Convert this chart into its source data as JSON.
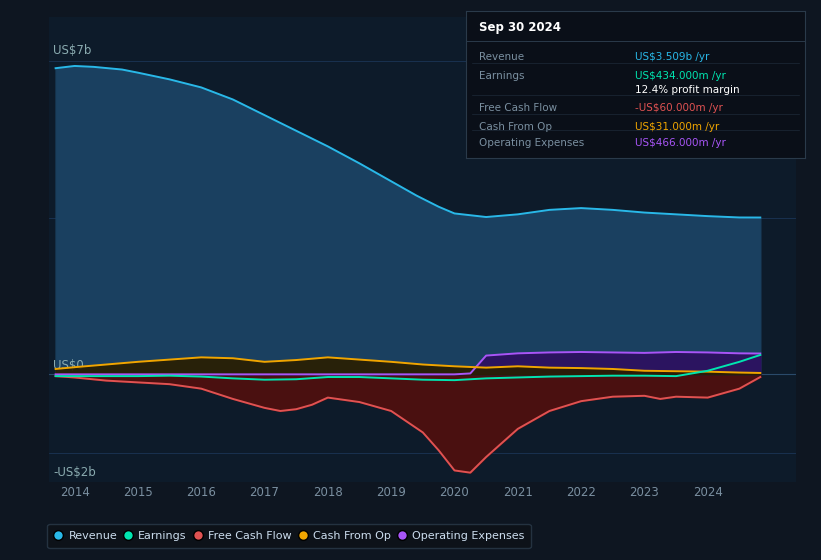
{
  "bg_color": "#0e1621",
  "plot_bg_color": "#0d1b2a",
  "grid_color": "#1e3a5f",
  "ylim": [
    -2.4,
    8.0
  ],
  "xlim": [
    2013.6,
    2025.4
  ],
  "xticks": [
    2014,
    2015,
    2016,
    2017,
    2018,
    2019,
    2020,
    2021,
    2022,
    2023,
    2024
  ],
  "ylabel_top": "US$7b",
  "ylabel_zero": "US$0",
  "ylabel_bot": "-US$2b",
  "y_top_val": 7.0,
  "y_zero_val": 0.0,
  "y_bot_val": -2.0,
  "series": {
    "revenue": {
      "color": "#29b8e8",
      "fill_color": "#1a4060",
      "x": [
        2013.7,
        2014.0,
        2014.3,
        2014.75,
        2015.0,
        2015.5,
        2016.0,
        2016.5,
        2017.0,
        2017.5,
        2018.0,
        2018.5,
        2019.0,
        2019.4,
        2019.75,
        2020.0,
        2020.5,
        2021.0,
        2021.5,
        2022.0,
        2022.5,
        2023.0,
        2023.5,
        2024.0,
        2024.5,
        2024.83
      ],
      "y": [
        6.85,
        6.9,
        6.88,
        6.82,
        6.75,
        6.6,
        6.42,
        6.15,
        5.8,
        5.45,
        5.1,
        4.72,
        4.32,
        4.0,
        3.75,
        3.6,
        3.52,
        3.58,
        3.68,
        3.72,
        3.68,
        3.62,
        3.58,
        3.54,
        3.51,
        3.509
      ]
    },
    "earnings": {
      "color": "#00e5b0",
      "x": [
        2013.7,
        2014.0,
        2014.5,
        2015.0,
        2015.5,
        2016.0,
        2016.5,
        2017.0,
        2017.5,
        2018.0,
        2018.5,
        2019.0,
        2019.5,
        2020.0,
        2020.5,
        2021.0,
        2021.5,
        2022.0,
        2022.5,
        2023.0,
        2023.5,
        2024.0,
        2024.5,
        2024.83
      ],
      "y": [
        -0.04,
        -0.04,
        -0.04,
        -0.04,
        -0.03,
        -0.05,
        -0.09,
        -0.12,
        -0.11,
        -0.06,
        -0.06,
        -0.09,
        -0.12,
        -0.13,
        -0.09,
        -0.07,
        -0.05,
        -0.04,
        -0.03,
        -0.03,
        -0.04,
        0.08,
        0.28,
        0.434
      ]
    },
    "free_cash_flow": {
      "color": "#e05252",
      "fill_color": "#4a1010",
      "x": [
        2013.7,
        2014.0,
        2014.5,
        2015.0,
        2015.5,
        2016.0,
        2016.5,
        2017.0,
        2017.25,
        2017.5,
        2017.75,
        2018.0,
        2018.5,
        2019.0,
        2019.5,
        2019.75,
        2020.0,
        2020.25,
        2020.5,
        2021.0,
        2021.5,
        2022.0,
        2022.5,
        2023.0,
        2023.25,
        2023.5,
        2024.0,
        2024.5,
        2024.83
      ],
      "y": [
        -0.04,
        -0.07,
        -0.14,
        -0.18,
        -0.22,
        -0.32,
        -0.55,
        -0.75,
        -0.82,
        -0.78,
        -0.68,
        -0.52,
        -0.62,
        -0.82,
        -1.3,
        -1.7,
        -2.15,
        -2.2,
        -1.85,
        -1.22,
        -0.82,
        -0.6,
        -0.5,
        -0.48,
        -0.55,
        -0.5,
        -0.52,
        -0.32,
        -0.06
      ]
    },
    "cash_from_op": {
      "color": "#f0a500",
      "fill_color": "#2a1e00",
      "x": [
        2013.7,
        2014.0,
        2014.5,
        2015.0,
        2015.5,
        2016.0,
        2016.5,
        2017.0,
        2017.5,
        2018.0,
        2018.5,
        2019.0,
        2019.5,
        2020.0,
        2020.5,
        2021.0,
        2021.5,
        2022.0,
        2022.5,
        2023.0,
        2023.5,
        2024.0,
        2024.5,
        2024.83
      ],
      "y": [
        0.12,
        0.16,
        0.22,
        0.28,
        0.33,
        0.38,
        0.36,
        0.28,
        0.32,
        0.38,
        0.33,
        0.28,
        0.22,
        0.18,
        0.15,
        0.18,
        0.15,
        0.14,
        0.12,
        0.08,
        0.07,
        0.06,
        0.04,
        0.031
      ]
    },
    "operating_expenses": {
      "color": "#a855f7",
      "fill_color": "#2d1060",
      "x": [
        2013.7,
        2014.0,
        2014.5,
        2015.0,
        2015.5,
        2016.0,
        2016.5,
        2017.0,
        2017.5,
        2018.0,
        2018.5,
        2019.0,
        2019.5,
        2020.0,
        2020.25,
        2020.5,
        2021.0,
        2021.5,
        2022.0,
        2022.5,
        2023.0,
        2023.5,
        2024.0,
        2024.5,
        2024.83
      ],
      "y": [
        0.0,
        0.0,
        0.0,
        0.0,
        0.0,
        0.0,
        0.0,
        0.0,
        0.0,
        0.0,
        0.0,
        0.0,
        0.0,
        0.0,
        0.02,
        0.42,
        0.47,
        0.49,
        0.5,
        0.49,
        0.48,
        0.5,
        0.49,
        0.47,
        0.466
      ]
    }
  },
  "info_box": {
    "date": "Sep 30 2024",
    "rows": [
      {
        "label": "Revenue",
        "value": "US$3.509b /yr",
        "value_color": "#29b8e8"
      },
      {
        "label": "Earnings",
        "value": "US$434.000m /yr",
        "value_color": "#00e5b0"
      },
      {
        "label": "",
        "value": "12.4% profit margin",
        "value_color": "#ffffff"
      },
      {
        "label": "Free Cash Flow",
        "value": "-US$60.000m /yr",
        "value_color": "#e05252"
      },
      {
        "label": "Cash From Op",
        "value": "US$31.000m /yr",
        "value_color": "#f0a500"
      },
      {
        "label": "Operating Expenses",
        "value": "US$466.000m /yr",
        "value_color": "#a855f7"
      }
    ]
  },
  "legend": [
    {
      "label": "Revenue",
      "color": "#29b8e8"
    },
    {
      "label": "Earnings",
      "color": "#00e5b0"
    },
    {
      "label": "Free Cash Flow",
      "color": "#e05252"
    },
    {
      "label": "Cash From Op",
      "color": "#f0a500"
    },
    {
      "label": "Operating Expenses",
      "color": "#a855f7"
    }
  ]
}
